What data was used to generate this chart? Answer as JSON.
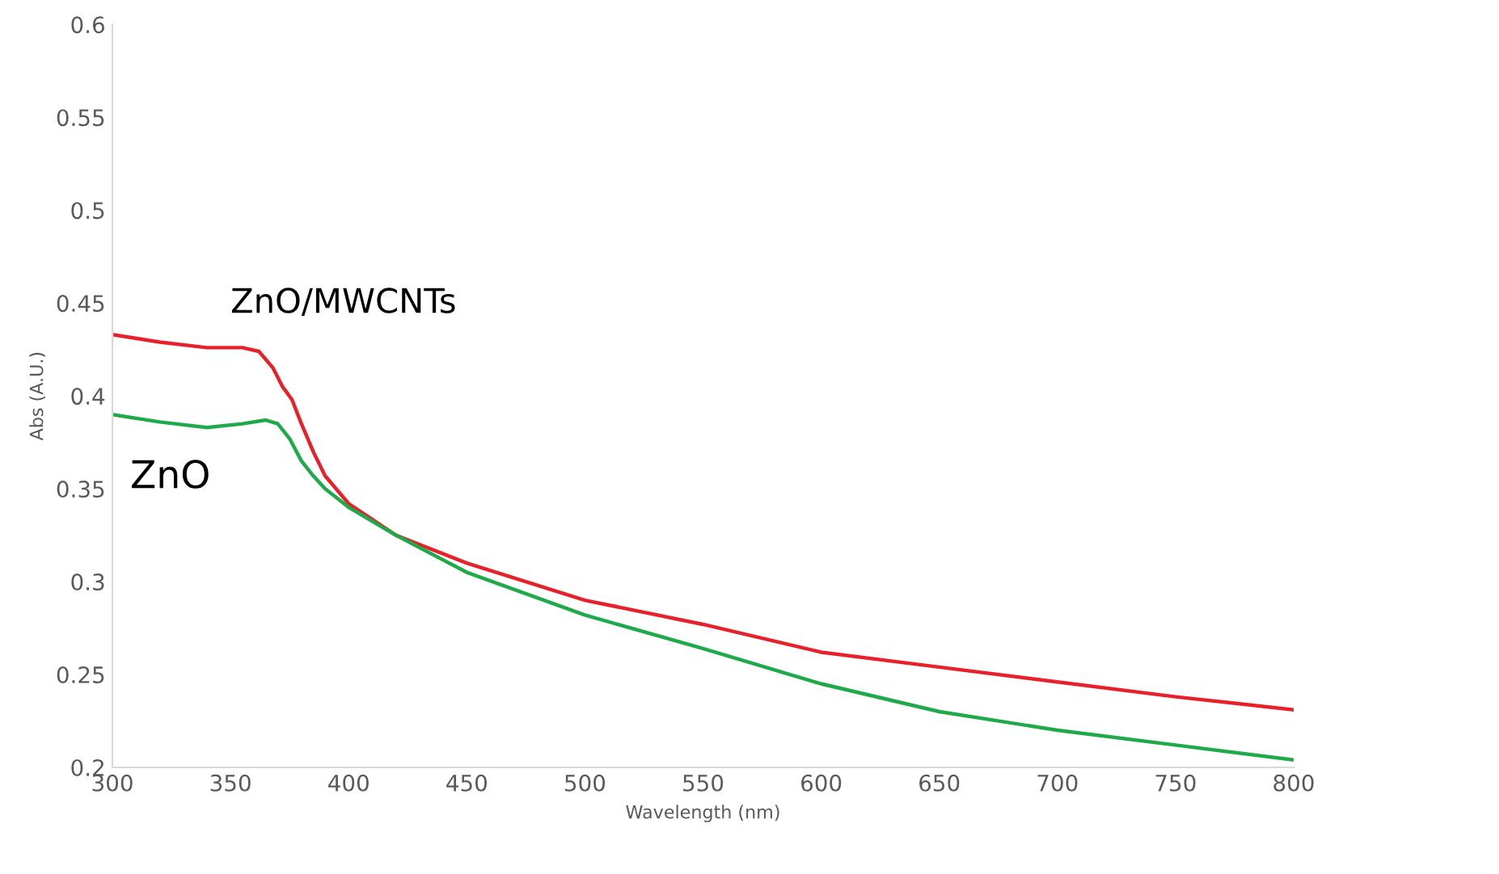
{
  "chart_data": {
    "type": "line",
    "xlabel": "Wavelength (nm)",
    "ylabel": "Abs (A.U.)",
    "xlim": [
      300,
      800
    ],
    "xticks": [
      300,
      350,
      400,
      450,
      500,
      550,
      600,
      650,
      700,
      750,
      800
    ],
    "ylim": [
      0.2,
      0.6
    ],
    "yticks": [
      0.2,
      0.25,
      0.3,
      0.35,
      0.4,
      0.45,
      0.5,
      0.55,
      0.6
    ],
    "grid": false,
    "legend": false,
    "marker": "none",
    "line_style": "solid",
    "series": [
      {
        "name": "ZnO/MWCNTs",
        "color": "#e8202a",
        "x": [
          300,
          320,
          340,
          355,
          362,
          368,
          372,
          376,
          380,
          385,
          390,
          400,
          420,
          450,
          500,
          550,
          600,
          650,
          700,
          750,
          800
        ],
        "values": [
          0.433,
          0.429,
          0.426,
          0.426,
          0.424,
          0.415,
          0.405,
          0.398,
          0.385,
          0.37,
          0.357,
          0.342,
          0.325,
          0.31,
          0.29,
          0.277,
          0.262,
          0.254,
          0.246,
          0.238,
          0.231
        ]
      },
      {
        "name": "ZnO",
        "color": "#1faa4a",
        "x": [
          300,
          320,
          340,
          355,
          365,
          370,
          375,
          380,
          385,
          390,
          400,
          420,
          450,
          500,
          550,
          600,
          650,
          700,
          750,
          800
        ],
        "values": [
          0.39,
          0.386,
          0.383,
          0.385,
          0.387,
          0.385,
          0.377,
          0.365,
          0.357,
          0.35,
          0.34,
          0.325,
          0.305,
          0.282,
          0.264,
          0.245,
          0.23,
          0.22,
          0.212,
          0.204
        ]
      }
    ]
  }
}
